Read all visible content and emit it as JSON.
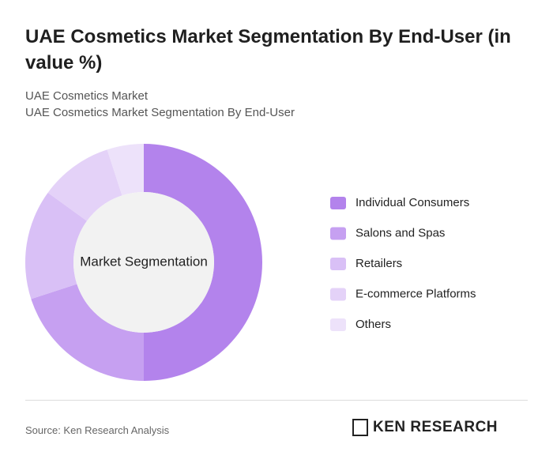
{
  "chart_data": {
    "type": "donut",
    "title": "UAE Cosmetics Market Segmentation By End-User (in value %)",
    "subtitle": [
      "UAE Cosmetics Market",
      "UAE Cosmetics Market Segmentation By End-User"
    ],
    "center_label": "Market Segmentation",
    "categories": [
      "Individual Consumers",
      "Salons and Spas",
      "Retailers",
      "E-commerce Platforms",
      "Others"
    ],
    "values": [
      50,
      20,
      15,
      10,
      5
    ],
    "colors": [
      "#b383ec",
      "#c6a0f1",
      "#d9c0f6",
      "#e4d2f8",
      "#ede2fa"
    ],
    "source": "Source: Ken Research Analysis",
    "brand": "KEN RESEARCH"
  }
}
